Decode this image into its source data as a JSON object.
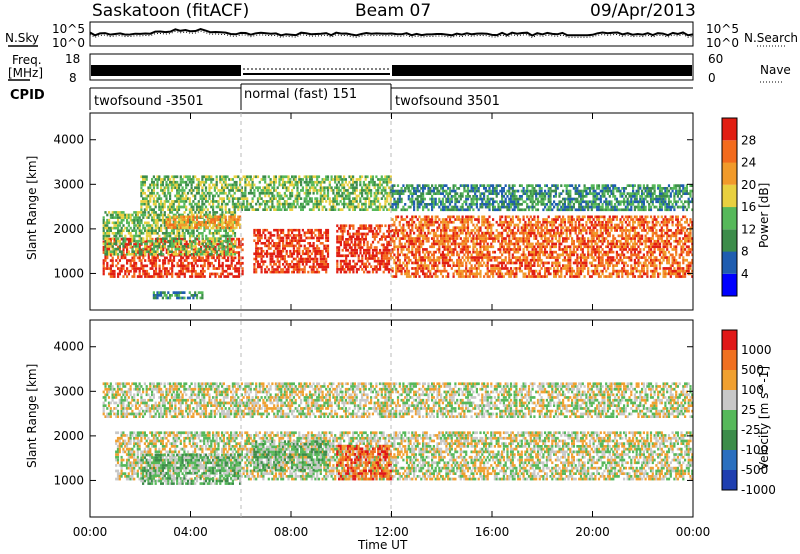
{
  "header": {
    "station": "Saskatoon (fitACF)",
    "beam": "Beam 07",
    "date": "09/Apr/2013"
  },
  "side_labels": {
    "nsky": "N.Sky",
    "nsearch": "N.Search",
    "freq_line1": "Freq.",
    "freq_line2": "[MHz]",
    "nave": "Nave",
    "cpid": "CPID"
  },
  "noise_axis": {
    "left_top": "10^5",
    "left_bottom": "10^0",
    "right_top": "10^5",
    "right_bottom": "10^0"
  },
  "freq_axis": {
    "left_ticks": [
      "18",
      "8"
    ],
    "right_ticks": [
      "60",
      "0"
    ]
  },
  "cpid_segments": [
    {
      "label": "twofsound -3501",
      "start_hour": 0,
      "end_hour": 6
    },
    {
      "label": "normal (fast) 151",
      "start_hour": 6,
      "end_hour": 12
    },
    {
      "label": "twofsound 3501",
      "start_hour": 12,
      "end_hour": 24
    }
  ],
  "x_axis": {
    "label": "Time UT",
    "ticks": [
      "00:00",
      "04:00",
      "08:00",
      "12:00",
      "16:00",
      "20:00",
      "00:00"
    ],
    "range_hours": [
      0,
      24
    ]
  },
  "y_axis": {
    "label": "Slant Range [km]",
    "ticks": [
      "1000",
      "2000",
      "3000",
      "4000"
    ],
    "range_km": [
      180,
      4600
    ]
  },
  "chart_data": [
    {
      "type": "heatmap",
      "title": "Power",
      "colorbar_label": "Power [dB]",
      "colorbar_ticks": [
        "4",
        "8",
        "12",
        "16",
        "20",
        "24",
        "28"
      ],
      "colors": [
        "#0000ff",
        "#1f5db0",
        "#3c8c4a",
        "#56b85a",
        "#e8d040",
        "#f19a2a",
        "#f36b1d",
        "#e11e12"
      ],
      "x_range": [
        0,
        24
      ],
      "y_range": [
        180,
        4600
      ],
      "features": [
        {
          "name": "main_echo_early",
          "t0": 0.5,
          "t1": 6.1,
          "r0": 900,
          "r1": 1800,
          "level": 7
        },
        {
          "name": "morning_band_upper",
          "t0": 0.5,
          "t1": 5.8,
          "r0": 1400,
          "r1": 2400,
          "level": 3
        },
        {
          "name": "band_2000km",
          "t0": 3.0,
          "t1": 6.0,
          "r0": 2000,
          "r1": 2300,
          "level": 5
        },
        {
          "name": "band_2600km",
          "t0": 2.0,
          "t1": 12.0,
          "r0": 2400,
          "r1": 3200,
          "level": 3
        },
        {
          "name": "echo_07_09",
          "t0": 6.5,
          "t1": 9.5,
          "r0": 1000,
          "r1": 2000,
          "level": 7
        },
        {
          "name": "echo_10_12",
          "t0": 9.8,
          "t1": 12.0,
          "r0": 1000,
          "r1": 2100,
          "level": 7
        },
        {
          "name": "evening_band",
          "t0": 12.0,
          "t1": 24.0,
          "r0": 900,
          "r1": 2300,
          "level": 6
        },
        {
          "name": "evening_upper",
          "t0": 12.0,
          "t1": 24.0,
          "r0": 2400,
          "r1": 3000,
          "level": 2
        },
        {
          "name": "near_range",
          "t0": 2.5,
          "t1": 4.5,
          "r0": 420,
          "r1": 600,
          "level": 2
        }
      ]
    },
    {
      "type": "heatmap",
      "title": "Velocity",
      "colorbar_label": "Velocity [m s^-1]",
      "colorbar_ticks": [
        "1000",
        "500",
        "100",
        "25",
        "-25",
        "-100",
        "-500",
        "-1000"
      ],
      "colors": [
        "#1f3fb0",
        "#2a6fbf",
        "#3c8c4a",
        "#56b85a",
        "#c8c8c8",
        "#f0a030",
        "#f07020",
        "#e01818"
      ],
      "x_range": [
        0,
        24
      ],
      "y_range": [
        180,
        4600
      ],
      "features": [
        {
          "name": "ground_scatter_band",
          "t0": 1.0,
          "t1": 24.0,
          "r0": 1000,
          "r1": 2100,
          "level": 4
        },
        {
          "name": "green_echo_early",
          "t0": 2.0,
          "t1": 6.0,
          "r0": 900,
          "r1": 1600,
          "level": 3
        },
        {
          "name": "green_echo_mid",
          "t0": 6.5,
          "t1": 9.5,
          "r0": 1200,
          "r1": 1900,
          "level": 3
        },
        {
          "name": "orange_echo",
          "t0": 9.8,
          "t1": 12.0,
          "r0": 1000,
          "r1": 1800,
          "level": 6
        },
        {
          "name": "upper_gray",
          "t0": 0.5,
          "t1": 24.0,
          "r0": 2400,
          "r1": 3200,
          "level": 4
        }
      ]
    }
  ]
}
